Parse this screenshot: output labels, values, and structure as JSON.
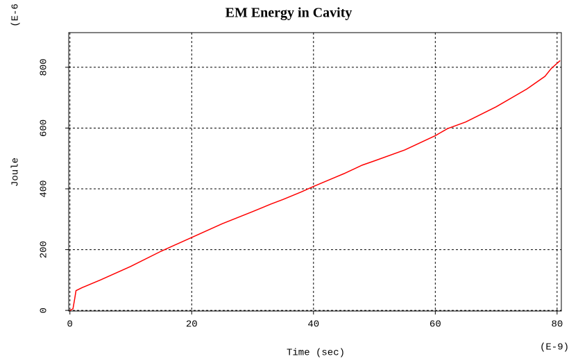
{
  "chart_data": {
    "type": "line",
    "title": "EM Energy in Cavity",
    "x_label": "Time (sec)",
    "y_label": "Joule",
    "x_exponent": "(E-9)",
    "y_exponent": "(E-6",
    "xlim": [
      -0.2,
      80.7
    ],
    "xticks": [
      0,
      20,
      40,
      60,
      80
    ],
    "ylim": [
      -2,
      914
    ],
    "yticks": [
      0,
      200,
      400,
      600,
      800
    ],
    "grid": true,
    "x": [
      0,
      0.5,
      0.8,
      1,
      2,
      5,
      10,
      15,
      20,
      25,
      30,
      33,
      35,
      38,
      40,
      45,
      48,
      50,
      55,
      60,
      62,
      65,
      70,
      75,
      78,
      79,
      80.5
    ],
    "series": [
      {
        "color": "#ff0000",
        "values": [
          0,
          5,
          40,
          65,
          75,
          100,
          145,
          195,
          240,
          285,
          325,
          350,
          365,
          390,
          408,
          450,
          478,
          492,
          528,
          575,
          598,
          620,
          670,
          728,
          770,
          795,
          822
        ]
      }
    ]
  }
}
